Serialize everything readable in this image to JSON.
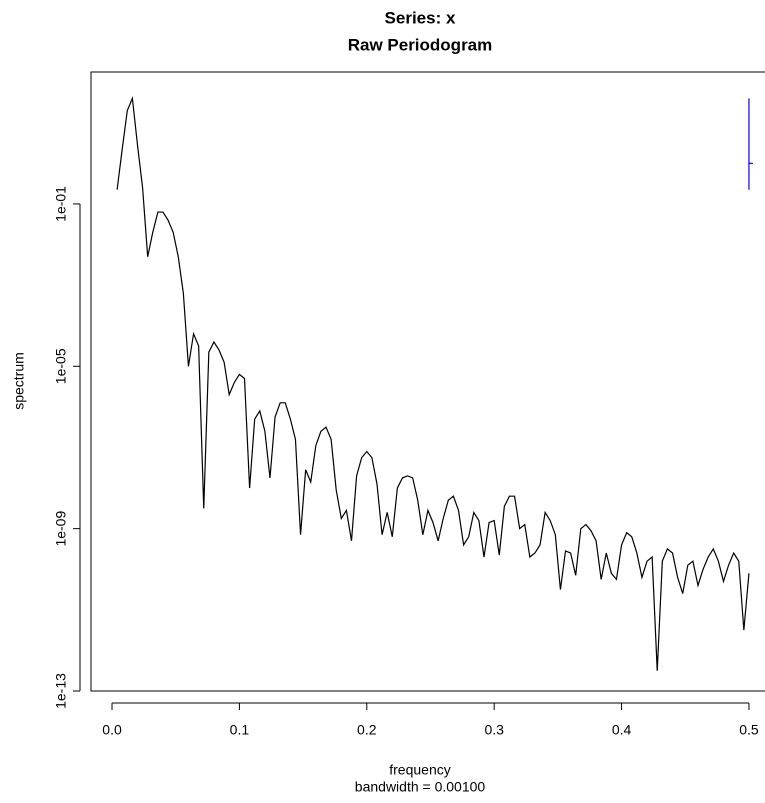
{
  "chart_data": {
    "type": "line",
    "title": "Series: x",
    "subtitle": "Raw Periodogram",
    "x_label": "frequency",
    "x_sublabel": "bandwidth = 0.00100",
    "y_label": "spectrum",
    "log_y": true,
    "color": "#000000",
    "xlim": [
      -0.0165,
      0.5126
    ],
    "ylim": [
      1e-13,
      178
    ],
    "xticks": [
      {
        "value": 0,
        "label": "0.0"
      },
      0.1,
      0.2,
      0.3,
      0.4,
      0.5
    ],
    "yticks": [
      {
        "value": 1e-13,
        "label": "1e-13"
      },
      {
        "value": 1e-09,
        "label": "1e-09"
      },
      {
        "value": 1e-05,
        "label": "1e-05"
      },
      {
        "value": 0.1,
        "label": "1e-01"
      }
    ],
    "x": [
      0.004,
      0.008,
      0.012,
      0.016,
      0.02,
      0.024,
      0.028,
      0.032,
      0.036,
      0.04,
      0.044,
      0.048,
      0.052,
      0.056,
      0.06,
      0.064,
      0.068,
      0.072,
      0.076,
      0.08,
      0.084,
      0.088,
      0.092,
      0.096,
      0.1,
      0.104,
      0.108,
      0.112,
      0.116,
      0.12,
      0.124,
      0.128,
      0.132,
      0.136,
      0.14,
      0.144,
      0.148,
      0.152,
      0.156,
      0.16,
      0.164,
      0.168,
      0.172,
      0.176,
      0.18,
      0.184,
      0.188,
      0.192,
      0.196,
      0.2,
      0.204,
      0.208,
      0.212,
      0.216,
      0.22,
      0.224,
      0.228,
      0.232,
      0.236,
      0.24,
      0.244,
      0.248,
      0.252,
      0.256,
      0.26,
      0.264,
      0.268,
      0.272,
      0.276,
      0.28,
      0.284,
      0.288,
      0.292,
      0.296,
      0.3,
      0.304,
      0.308,
      0.312,
      0.316,
      0.32,
      0.324,
      0.328,
      0.332,
      0.336,
      0.34,
      0.344,
      0.348,
      0.352,
      0.356,
      0.36,
      0.364,
      0.368,
      0.372,
      0.376,
      0.38,
      0.384,
      0.388,
      0.392,
      0.396,
      0.4,
      0.404,
      0.408,
      0.412,
      0.416,
      0.42,
      0.424,
      0.428,
      0.432,
      0.436,
      0.44,
      0.444,
      0.448,
      0.452,
      0.456,
      0.46,
      0.464,
      0.468,
      0.472,
      0.476,
      0.48,
      0.484,
      0.488,
      0.492,
      0.496,
      0.5
    ],
    "values": [
      0.224,
      2.24,
      20.0,
      39.8,
      2.82,
      0.251,
      0.00501,
      0.02,
      0.0631,
      0.0631,
      0.0398,
      0.02,
      0.00501,
      0.000631,
      1e-05,
      6.31e-05,
      3.16e-05,
      3.16e-09,
      2.24e-05,
      3.98e-05,
      2.51e-05,
      1.26e-05,
      2e-06,
      3.98e-06,
      6.31e-06,
      5.01e-06,
      1e-08,
      5.01e-07,
      7.94e-07,
      2.51e-07,
      1.78e-08,
      5.62e-07,
      1.26e-06,
      1.26e-06,
      5.01e-07,
      1.58e-07,
      7.08e-10,
      2.82e-08,
      1.41e-08,
      1.12e-07,
      2.51e-07,
      3.16e-07,
      1.58e-07,
      8.91e-09,
      1.78e-09,
      2.82e-09,
      5.01e-10,
      2e-08,
      5.62e-08,
      7.94e-08,
      5.62e-08,
      1.26e-08,
      7.08e-10,
      2.51e-09,
      6.31e-10,
      1e-08,
      1.78e-08,
      2e-08,
      1.78e-08,
      5.01e-09,
      7.08e-10,
      2.82e-09,
      1.41e-09,
      5.01e-10,
      1.78e-09,
      5.01e-09,
      6.31e-09,
      2.82e-09,
      3.98e-10,
      6.31e-10,
      2.51e-09,
      1.58e-09,
      2e-10,
      1.41e-09,
      1.58e-09,
      2.24e-10,
      3.55e-09,
      6.31e-09,
      6.31e-09,
      1e-09,
      1.26e-09,
      2e-10,
      2.51e-10,
      3.98e-10,
      2.51e-09,
      1.58e-09,
      7.08e-10,
      3.16e-11,
      2.82e-10,
      2.51e-10,
      7.08e-11,
      1e-09,
      1.26e-09,
      8.91e-10,
      5.01e-10,
      5.62e-11,
      2.51e-10,
      7.94e-11,
      5.62e-11,
      3.98e-10,
      7.94e-10,
      6.31e-10,
      2.51e-10,
      6.31e-11,
      1.58e-10,
      2e-10,
      3.16e-13,
      1.58e-10,
      3.16e-10,
      2.51e-10,
      6.31e-11,
      2.51e-11,
      1.26e-10,
      1.58e-10,
      3.98e-11,
      1e-10,
      2e-10,
      3.16e-10,
      1.58e-10,
      5.01e-11,
      1.26e-10,
      2.51e-10,
      1.58e-10,
      3.16e-12,
      7.94e-11
    ],
    "ci": {
      "x": 0.5,
      "lower": 0.224,
      "center": 1.0,
      "upper": 39.8,
      "color": "#0000ff"
    }
  }
}
